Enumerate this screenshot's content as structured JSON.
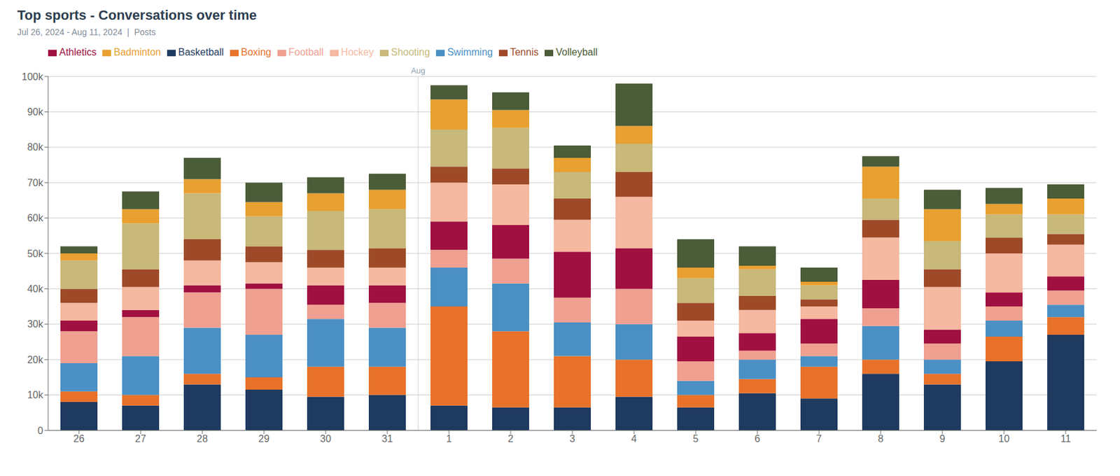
{
  "chart_data": {
    "type": "bar",
    "stacked": true,
    "title": "Top sports - Conversations over time",
    "subtitle": "Jul 26, 2024 - Aug 11, 2024  |  Posts",
    "categories": [
      "26",
      "27",
      "28",
      "29",
      "30",
      "31",
      "1",
      "2",
      "3",
      "4",
      "5",
      "6",
      "7",
      "8",
      "9",
      "10",
      "11"
    ],
    "series": [
      {
        "name": "Basketball",
        "color": "#1e3a5f",
        "values": [
          8000,
          7000,
          13000,
          11500,
          9500,
          10000,
          7000,
          6500,
          6500,
          9500,
          6500,
          10500,
          9000,
          16000,
          13000,
          19500,
          27000
        ]
      },
      {
        "name": "Boxing",
        "color": "#e8722a",
        "values": [
          3000,
          3000,
          3000,
          3500,
          8500,
          8000,
          28000,
          21500,
          14500,
          10500,
          3500,
          4000,
          9000,
          4000,
          3000,
          7000,
          5000
        ]
      },
      {
        "name": "Swimming",
        "color": "#4a90c4",
        "values": [
          8000,
          11000,
          13000,
          12000,
          13500,
          11000,
          11000,
          13500,
          9500,
          10000,
          4000,
          5500,
          3000,
          9500,
          4000,
          4500,
          3500
        ]
      },
      {
        "name": "Football",
        "color": "#f0a090",
        "values": [
          9000,
          11000,
          10000,
          13000,
          4000,
          7000,
          5000,
          7000,
          7000,
          10000,
          5500,
          2500,
          3500,
          5000,
          4500,
          4000,
          4000
        ]
      },
      {
        "name": "Athletics",
        "color": "#a01040",
        "values": [
          3000,
          2000,
          2000,
          1500,
          5500,
          5000,
          8000,
          9500,
          13000,
          11500,
          7000,
          5000,
          7000,
          8000,
          4000,
          4000,
          4000
        ]
      },
      {
        "name": "Hockey",
        "color": "#f5b8a0",
        "values": [
          5000,
          6500,
          7000,
          6000,
          5000,
          5000,
          11000,
          11500,
          9000,
          14500,
          4500,
          6500,
          3500,
          12000,
          12000,
          11000,
          9000
        ]
      },
      {
        "name": "Tennis",
        "color": "#9e4a28",
        "values": [
          4000,
          5000,
          6000,
          4500,
          5000,
          5500,
          4500,
          4500,
          6000,
          7000,
          5000,
          4000,
          2000,
          5000,
          5000,
          4500,
          3000
        ]
      },
      {
        "name": "Shooting",
        "color": "#c8b87a",
        "values": [
          8000,
          13000,
          13000,
          8500,
          11000,
          11000,
          10500,
          11500,
          7500,
          8000,
          7000,
          7500,
          4000,
          6000,
          8000,
          6500,
          5500
        ]
      },
      {
        "name": "Badminton",
        "color": "#e8a030",
        "values": [
          2000,
          4000,
          4000,
          4000,
          5000,
          5500,
          8500,
          5000,
          4000,
          5000,
          3000,
          1000,
          1000,
          9000,
          9000,
          3000,
          4500
        ]
      },
      {
        "name": "Volleyball",
        "color": "#4a5c38",
        "values": [
          2000,
          5000,
          6000,
          5500,
          4500,
          4500,
          4000,
          5000,
          3500,
          12000,
          8000,
          5500,
          4000,
          3000,
          5500,
          4500,
          4000
        ]
      }
    ],
    "ylim": [
      0,
      100000
    ],
    "yticks": [
      0,
      {
        "value": 10000,
        "label": "10k"
      },
      {
        "value": 20000,
        "label": "20k"
      },
      {
        "value": 30000,
        "label": "30k"
      },
      {
        "value": 40000,
        "label": "40k"
      },
      {
        "value": 50000,
        "label": "50k"
      },
      {
        "value": 60000,
        "label": "60k"
      },
      {
        "value": 70000,
        "label": "70k"
      },
      {
        "value": 80000,
        "label": "80k"
      },
      {
        "value": 90000,
        "label": "90k"
      },
      {
        "value": 100000,
        "label": "100k"
      }
    ],
    "grid": true,
    "legend": "top",
    "annotations": [
      {
        "text": "Aug",
        "x": "1"
      }
    ]
  }
}
